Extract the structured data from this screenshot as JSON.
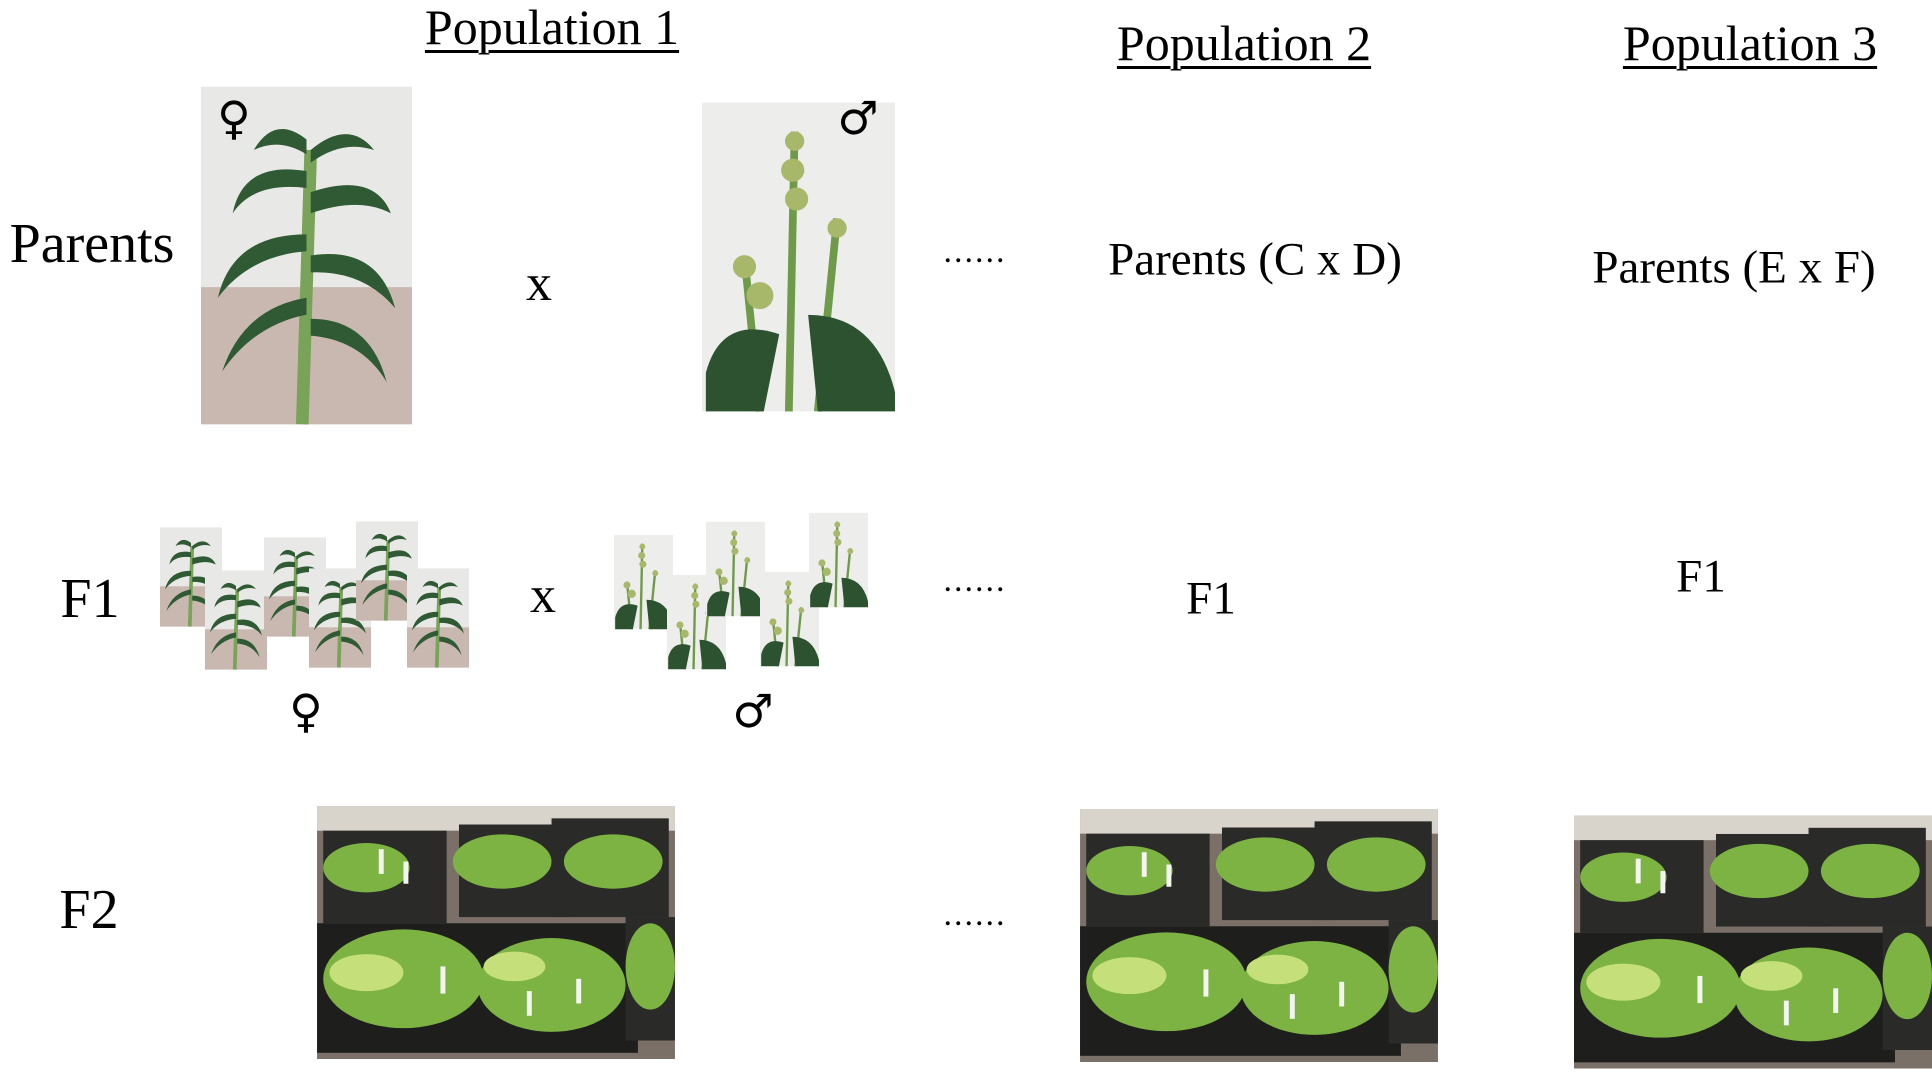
{
  "headers": [
    "Population 1",
    "Population 2",
    "Population 3"
  ],
  "rows": [
    "Parents",
    "F1",
    "F2"
  ],
  "population_1": {
    "parents": {
      "female_symbol": "♀",
      "cross": "x",
      "male_symbol": "♂"
    },
    "f1": {
      "female_symbol": "♀",
      "cross": "x",
      "male_symbol": "♂"
    }
  },
  "continuation": [
    "......",
    "......",
    "......"
  ],
  "population_2": {
    "parents": "Parents (C x D)",
    "f1": "F1"
  },
  "population_3": {
    "parents": "Parents (E x F)",
    "f1": "F1"
  }
}
